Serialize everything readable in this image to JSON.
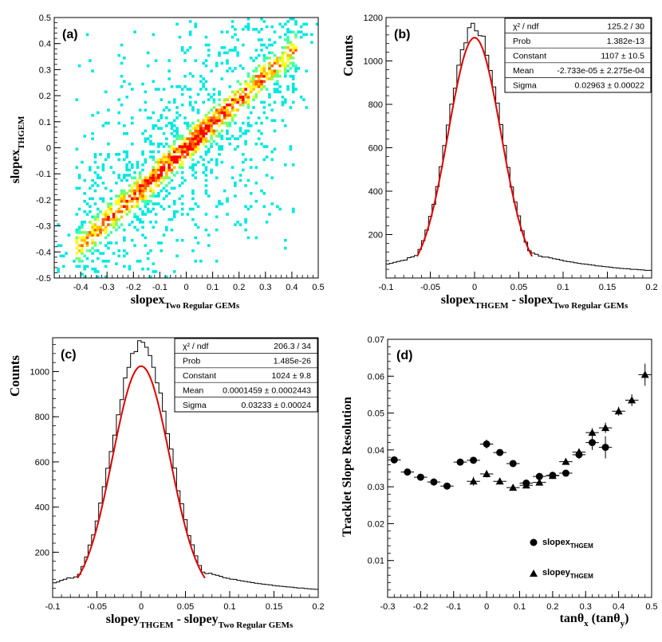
{
  "chart_data": [
    {
      "type": "heatmap",
      "panel_label": "(a)",
      "xlabel": "slopex",
      "xlabel_sub": "Two Regular GEMs",
      "ylabel": "slopex",
      "ylabel_sub": "THGEM",
      "xlim": [
        -0.5,
        0.5
      ],
      "ylim": [
        -0.5,
        0.5
      ],
      "xticks": [
        -0.4,
        -0.3,
        -0.2,
        -0.1,
        0,
        0.1,
        0.2,
        0.3,
        0.4,
        0.5
      ],
      "yticks": [
        -0.5,
        -0.4,
        -0.3,
        -0.2,
        -0.1,
        0,
        0.1,
        0.2,
        0.3,
        0.4,
        0.5
      ],
      "correlation_line": {
        "slope": 0.93,
        "intercept": 0.0,
        "x_range": [
          -0.4,
          0.4
        ],
        "core_width": 0.04
      },
      "color_scale": [
        "#00e8e0",
        "#40ffb0",
        "#80ff60",
        "#ffff20",
        "#ffc000",
        "#ff6000",
        "#ff0000"
      ]
    },
    {
      "type": "bar",
      "panel_label": "(b)",
      "xlabel": "slopex",
      "xlabel_sub1": "THGEM",
      "xlabel_mid": " - slopex",
      "xlabel_sub2": "Two Regular GEMs",
      "ylabel": "Counts",
      "xlim": [
        -0.1,
        0.2
      ],
      "ylim": [
        0,
        1200
      ],
      "xticks": [
        -0.1,
        -0.05,
        0,
        0.05,
        0.1,
        0.15,
        0.2
      ],
      "yticks": [
        200,
        400,
        600,
        800,
        1000,
        1200
      ],
      "bin_width": 0.004,
      "peak": 1160,
      "gaussian_sigma": 0.02963,
      "tail": {
        "at_0_07": 100,
        "at_0_2": 30
      },
      "fit": {
        "constant": 1107,
        "mean": 0.0,
        "sigma": 0.02963,
        "x_range": [
          -0.065,
          0.065
        ],
        "color": "#e00000"
      },
      "stats": [
        [
          "χ² / ndf",
          "125.2 / 30"
        ],
        [
          "Prob",
          "1.382e-13"
        ],
        [
          "Constant",
          "1107 ± 10.5"
        ],
        [
          "Mean",
          "-2.733e-05 ± 2.275e-04"
        ],
        [
          "Sigma",
          "0.02963 ± 0.00022"
        ]
      ]
    },
    {
      "type": "bar",
      "panel_label": "(c)",
      "xlabel": "slopey",
      "xlabel_sub1": "THGEM",
      "xlabel_mid": " - slopey",
      "xlabel_sub2": "Two Regular GEMs",
      "ylabel": "Counts",
      "xlim": [
        -0.1,
        0.2
      ],
      "ylim": [
        0,
        1150
      ],
      "xticks": [
        -0.1,
        -0.05,
        0,
        0.05,
        0.1,
        0.15,
        0.2
      ],
      "yticks": [
        200,
        400,
        600,
        800,
        1000
      ],
      "bin_width": 0.004,
      "peak": 1120,
      "gaussian_sigma": 0.03233,
      "tail": {
        "at_0_07": 105,
        "at_0_2": 20
      },
      "fit": {
        "constant": 1024,
        "mean": 0.0,
        "sigma": 0.03233,
        "x_range": [
          -0.072,
          0.072
        ],
        "color": "#e00000"
      },
      "stats": [
        [
          "χ² / ndf",
          "206.3 / 34"
        ],
        [
          "Prob",
          "1.485e-26"
        ],
        [
          "Constant",
          "1024 ± 9.8"
        ],
        [
          "Mean",
          "0.0001459 ± 0.0002443"
        ],
        [
          "Sigma",
          "0.03233 ± 0.00024"
        ]
      ]
    },
    {
      "type": "scatter",
      "panel_label": "(d)",
      "xlabel": "tanθ",
      "xlabel_sub1": "x",
      "xlabel_mid": " (tanθ",
      "xlabel_sub2": "y",
      "xlabel_end": ")",
      "ylabel": "Tracklet Slope Resolution",
      "xlim": [
        -0.3,
        0.5
      ],
      "ylim": [
        0,
        0.07
      ],
      "xticks": [
        -0.3,
        -0.2,
        -0.1,
        0,
        0.1,
        0.2,
        0.3,
        0.4,
        0.5
      ],
      "yticks": [
        0.01,
        0.02,
        0.03,
        0.04,
        0.05,
        0.06,
        0.07
      ],
      "series": [
        {
          "name": "slopex",
          "name_sub": "THGEM",
          "marker": "circle",
          "points": [
            {
              "x": -0.28,
              "y": 0.0373,
              "yerr": 0.0008
            },
            {
              "x": -0.24,
              "y": 0.034,
              "yerr": 0.0007
            },
            {
              "x": -0.2,
              "y": 0.0326,
              "yerr": 0.0006
            },
            {
              "x": -0.16,
              "y": 0.0313,
              "yerr": 0.0006
            },
            {
              "x": -0.12,
              "y": 0.0302,
              "yerr": 0.0005
            },
            {
              "x": -0.08,
              "y": 0.0367,
              "yerr": 0.0006
            },
            {
              "x": -0.04,
              "y": 0.0372,
              "yerr": 0.0007
            },
            {
              "x": 0.0,
              "y": 0.0416,
              "yerr": 0.0012
            },
            {
              "x": 0.04,
              "y": 0.0393,
              "yerr": 0.0008
            },
            {
              "x": 0.08,
              "y": 0.0363,
              "yerr": 0.0007
            },
            {
              "x": 0.12,
              "y": 0.031,
              "yerr": 0.0006
            },
            {
              "x": 0.16,
              "y": 0.0328,
              "yerr": 0.0007
            },
            {
              "x": 0.2,
              "y": 0.0331,
              "yerr": 0.0007
            },
            {
              "x": 0.24,
              "y": 0.0337,
              "yerr": 0.0008
            },
            {
              "x": 0.28,
              "y": 0.0387,
              "yerr": 0.0012
            },
            {
              "x": 0.32,
              "y": 0.042,
              "yerr": 0.002
            },
            {
              "x": 0.36,
              "y": 0.0407,
              "yerr": 0.003
            }
          ]
        },
        {
          "name": "slopey",
          "name_sub": "THGEM",
          "marker": "triangle",
          "points": [
            {
              "x": -0.04,
              "y": 0.0315,
              "yerr": 0.0012
            },
            {
              "x": 0.0,
              "y": 0.0335,
              "yerr": 0.001
            },
            {
              "x": 0.04,
              "y": 0.0315,
              "yerr": 0.0008
            },
            {
              "x": 0.08,
              "y": 0.0298,
              "yerr": 0.0008
            },
            {
              "x": 0.12,
              "y": 0.0304,
              "yerr": 0.0007
            },
            {
              "x": 0.16,
              "y": 0.0312,
              "yerr": 0.0007
            },
            {
              "x": 0.2,
              "y": 0.033,
              "yerr": 0.0006
            },
            {
              "x": 0.24,
              "y": 0.0368,
              "yerr": 0.0008
            },
            {
              "x": 0.28,
              "y": 0.0394,
              "yerr": 0.001
            },
            {
              "x": 0.32,
              "y": 0.0447,
              "yerr": 0.0012
            },
            {
              "x": 0.36,
              "y": 0.046,
              "yerr": 0.0014
            },
            {
              "x": 0.4,
              "y": 0.0505,
              "yerr": 0.0012
            },
            {
              "x": 0.44,
              "y": 0.0535,
              "yerr": 0.0016
            },
            {
              "x": 0.48,
              "y": 0.0604,
              "yerr": 0.003
            }
          ]
        }
      ]
    }
  ]
}
